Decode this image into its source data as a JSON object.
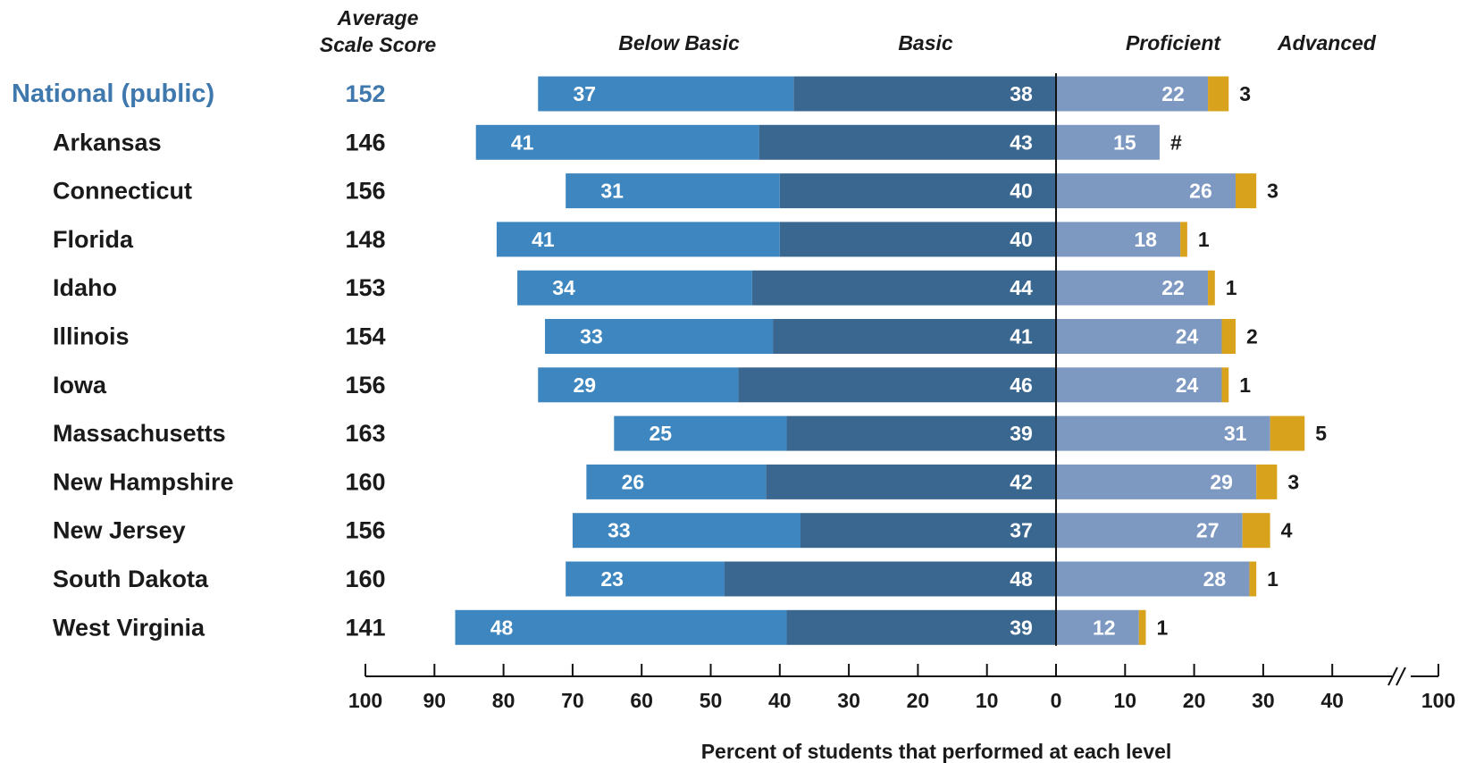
{
  "chart_data": {
    "type": "bar",
    "orientation": "horizontal-diverging",
    "headers": {
      "score_line1": "Average",
      "score_line2": "Scale Score",
      "below_basic": "Below Basic",
      "basic": "Basic",
      "proficient": "Proficient",
      "advanced": "Advanced"
    },
    "xlabel": "Percent of students that performed at each level",
    "left_ticks": [
      "100",
      "90",
      "80",
      "70",
      "60",
      "50",
      "40",
      "30",
      "20",
      "10",
      "0"
    ],
    "right_ticks": [
      "10",
      "20",
      "30",
      "40"
    ],
    "right_end_tick": "100",
    "axis_break": true,
    "colors": {
      "below_basic": "#3d86bf",
      "basic": "#3a6790",
      "proficient": "#7d98c1",
      "advanced": "#d9a21d",
      "national_text": "#3f78ad"
    },
    "rows": [
      {
        "name": "National (public)",
        "score": "152",
        "below_basic": 37,
        "basic": 38,
        "proficient": 22,
        "advanced": 3,
        "below_basic_label": "37",
        "basic_label": "38",
        "proficient_label": "22",
        "advanced_label": "3",
        "highlight": true
      },
      {
        "name": "Arkansas",
        "score": "146",
        "below_basic": 41,
        "basic": 43,
        "proficient": 15,
        "advanced": 0,
        "below_basic_label": "41",
        "basic_label": "43",
        "proficient_label": "15",
        "advanced_label": "#"
      },
      {
        "name": "Connecticut",
        "score": "156",
        "below_basic": 31,
        "basic": 40,
        "proficient": 26,
        "advanced": 3,
        "below_basic_label": "31",
        "basic_label": "40",
        "proficient_label": "26",
        "advanced_label": "3"
      },
      {
        "name": "Florida",
        "score": "148",
        "below_basic": 41,
        "basic": 40,
        "proficient": 18,
        "advanced": 1,
        "below_basic_label": "41",
        "basic_label": "40",
        "proficient_label": "18",
        "advanced_label": "1"
      },
      {
        "name": "Idaho",
        "score": "153",
        "below_basic": 34,
        "basic": 44,
        "proficient": 22,
        "advanced": 1,
        "below_basic_label": "34",
        "basic_label": "44",
        "proficient_label": "22",
        "advanced_label": "1"
      },
      {
        "name": "Illinois",
        "score": "154",
        "below_basic": 33,
        "basic": 41,
        "proficient": 24,
        "advanced": 2,
        "below_basic_label": "33",
        "basic_label": "41",
        "proficient_label": "24",
        "advanced_label": "2"
      },
      {
        "name": "Iowa",
        "score": "156",
        "below_basic": 29,
        "basic": 46,
        "proficient": 24,
        "advanced": 1,
        "below_basic_label": "29",
        "basic_label": "46",
        "proficient_label": "24",
        "advanced_label": "1"
      },
      {
        "name": "Massachusetts",
        "score": "163",
        "below_basic": 25,
        "basic": 39,
        "proficient": 31,
        "advanced": 5,
        "below_basic_label": "25",
        "basic_label": "39",
        "proficient_label": "31",
        "advanced_label": "5"
      },
      {
        "name": "New Hampshire",
        "score": "160",
        "below_basic": 26,
        "basic": 42,
        "proficient": 29,
        "advanced": 3,
        "below_basic_label": "26",
        "basic_label": "42",
        "proficient_label": "29",
        "advanced_label": "3"
      },
      {
        "name": "New Jersey",
        "score": "156",
        "below_basic": 33,
        "basic": 37,
        "proficient": 27,
        "advanced": 4,
        "below_basic_label": "33",
        "basic_label": "37",
        "proficient_label": "27",
        "advanced_label": "4"
      },
      {
        "name": "South Dakota",
        "score": "160",
        "below_basic": 23,
        "basic": 48,
        "proficient": 28,
        "advanced": 1,
        "below_basic_label": "23",
        "basic_label": "48",
        "proficient_label": "28",
        "advanced_label": "1"
      },
      {
        "name": "West Virginia",
        "score": "141",
        "below_basic": 48,
        "basic": 39,
        "proficient": 12,
        "advanced": 1,
        "below_basic_label": "48",
        "basic_label": "39",
        "proficient_label": "12",
        "advanced_label": "1"
      }
    ]
  }
}
